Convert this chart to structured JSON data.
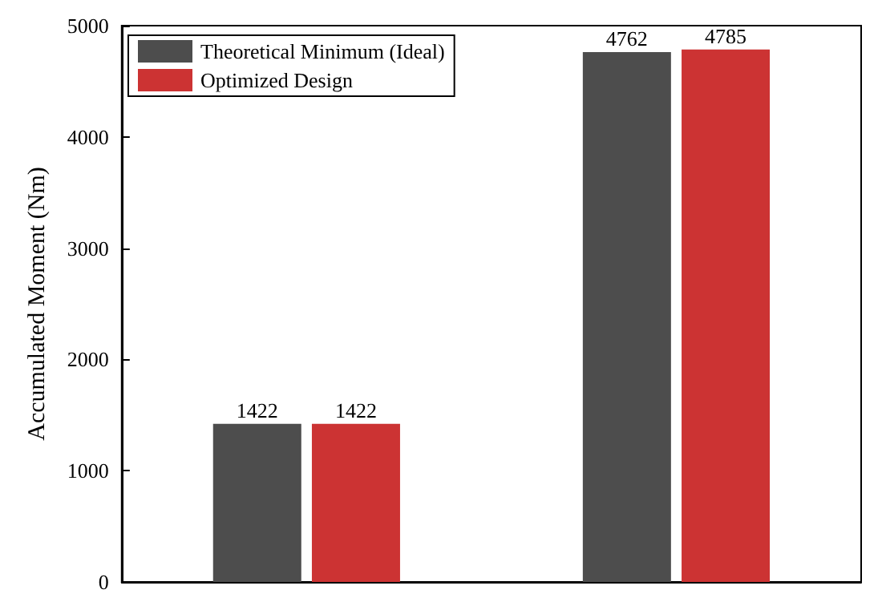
{
  "chart_data": {
    "type": "bar",
    "ylabel": "Accumulated Moment (Nm)",
    "categories": [
      null,
      null
    ],
    "series": [
      {
        "name": "Theoretical Minimum (Ideal)",
        "color": "#4d4d4d",
        "values": [
          1422,
          4762
        ]
      },
      {
        "name": "Optimized Design",
        "color": "#cc3333",
        "values": [
          1422,
          4785
        ]
      }
    ],
    "ylim": [
      0,
      5000
    ],
    "yticks": [
      0,
      1000,
      2000,
      3000,
      4000,
      5000
    ],
    "data_labels": true,
    "legend": "top left",
    "grid": false
  }
}
